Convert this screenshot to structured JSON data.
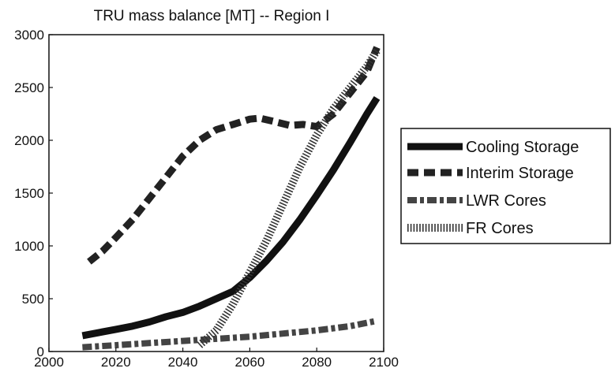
{
  "chart_data": {
    "type": "line",
    "title": "TRU mass balance [MT] -- Region I",
    "xlabel": "",
    "ylabel": "",
    "xlim": [
      2000,
      2100
    ],
    "ylim": [
      0,
      3000
    ],
    "x_ticks": [
      2000,
      2020,
      2040,
      2060,
      2080,
      2100
    ],
    "y_ticks": [
      0,
      500,
      1000,
      1500,
      2000,
      2500,
      3000
    ],
    "grid": false,
    "legend_position": "outside-right",
    "series": [
      {
        "name": "Cooling Storage",
        "style": "solid-thick",
        "color": "#111111",
        "x": [
          2010,
          2015,
          2020,
          2025,
          2030,
          2035,
          2040,
          2045,
          2050,
          2055,
          2060,
          2065,
          2070,
          2075,
          2080,
          2085,
          2090,
          2095,
          2098
        ],
        "y": [
          150,
          180,
          210,
          240,
          280,
          330,
          370,
          430,
          500,
          570,
          700,
          860,
          1040,
          1250,
          1480,
          1720,
          1980,
          2250,
          2400
        ]
      },
      {
        "name": "Interim Storage",
        "style": "dashed",
        "color": "#222222",
        "x": [
          2012,
          2016,
          2020,
          2025,
          2030,
          2035,
          2040,
          2045,
          2050,
          2055,
          2060,
          2063,
          2067,
          2072,
          2076,
          2080,
          2085,
          2090,
          2095,
          2098
        ],
        "y": [
          850,
          950,
          1080,
          1250,
          1450,
          1650,
          1850,
          2000,
          2100,
          2150,
          2200,
          2210,
          2180,
          2140,
          2150,
          2130,
          2250,
          2450,
          2650,
          2880
        ]
      },
      {
        "name": "LWR Cores",
        "style": "dash-dot-thick",
        "color": "#444444",
        "x": [
          2010,
          2020,
          2030,
          2040,
          2050,
          2060,
          2070,
          2080,
          2090,
          2098
        ],
        "y": [
          40,
          60,
          80,
          100,
          120,
          140,
          170,
          200,
          240,
          290
        ]
      },
      {
        "name": "FR Cores",
        "style": "hatched",
        "color": "#333333",
        "x": [
          2045,
          2050,
          2055,
          2060,
          2065,
          2070,
          2075,
          2080,
          2085,
          2090,
          2095,
          2098
        ],
        "y": [
          60,
          200,
          450,
          750,
          1050,
          1400,
          1750,
          2050,
          2300,
          2500,
          2700,
          2850
        ]
      }
    ]
  }
}
